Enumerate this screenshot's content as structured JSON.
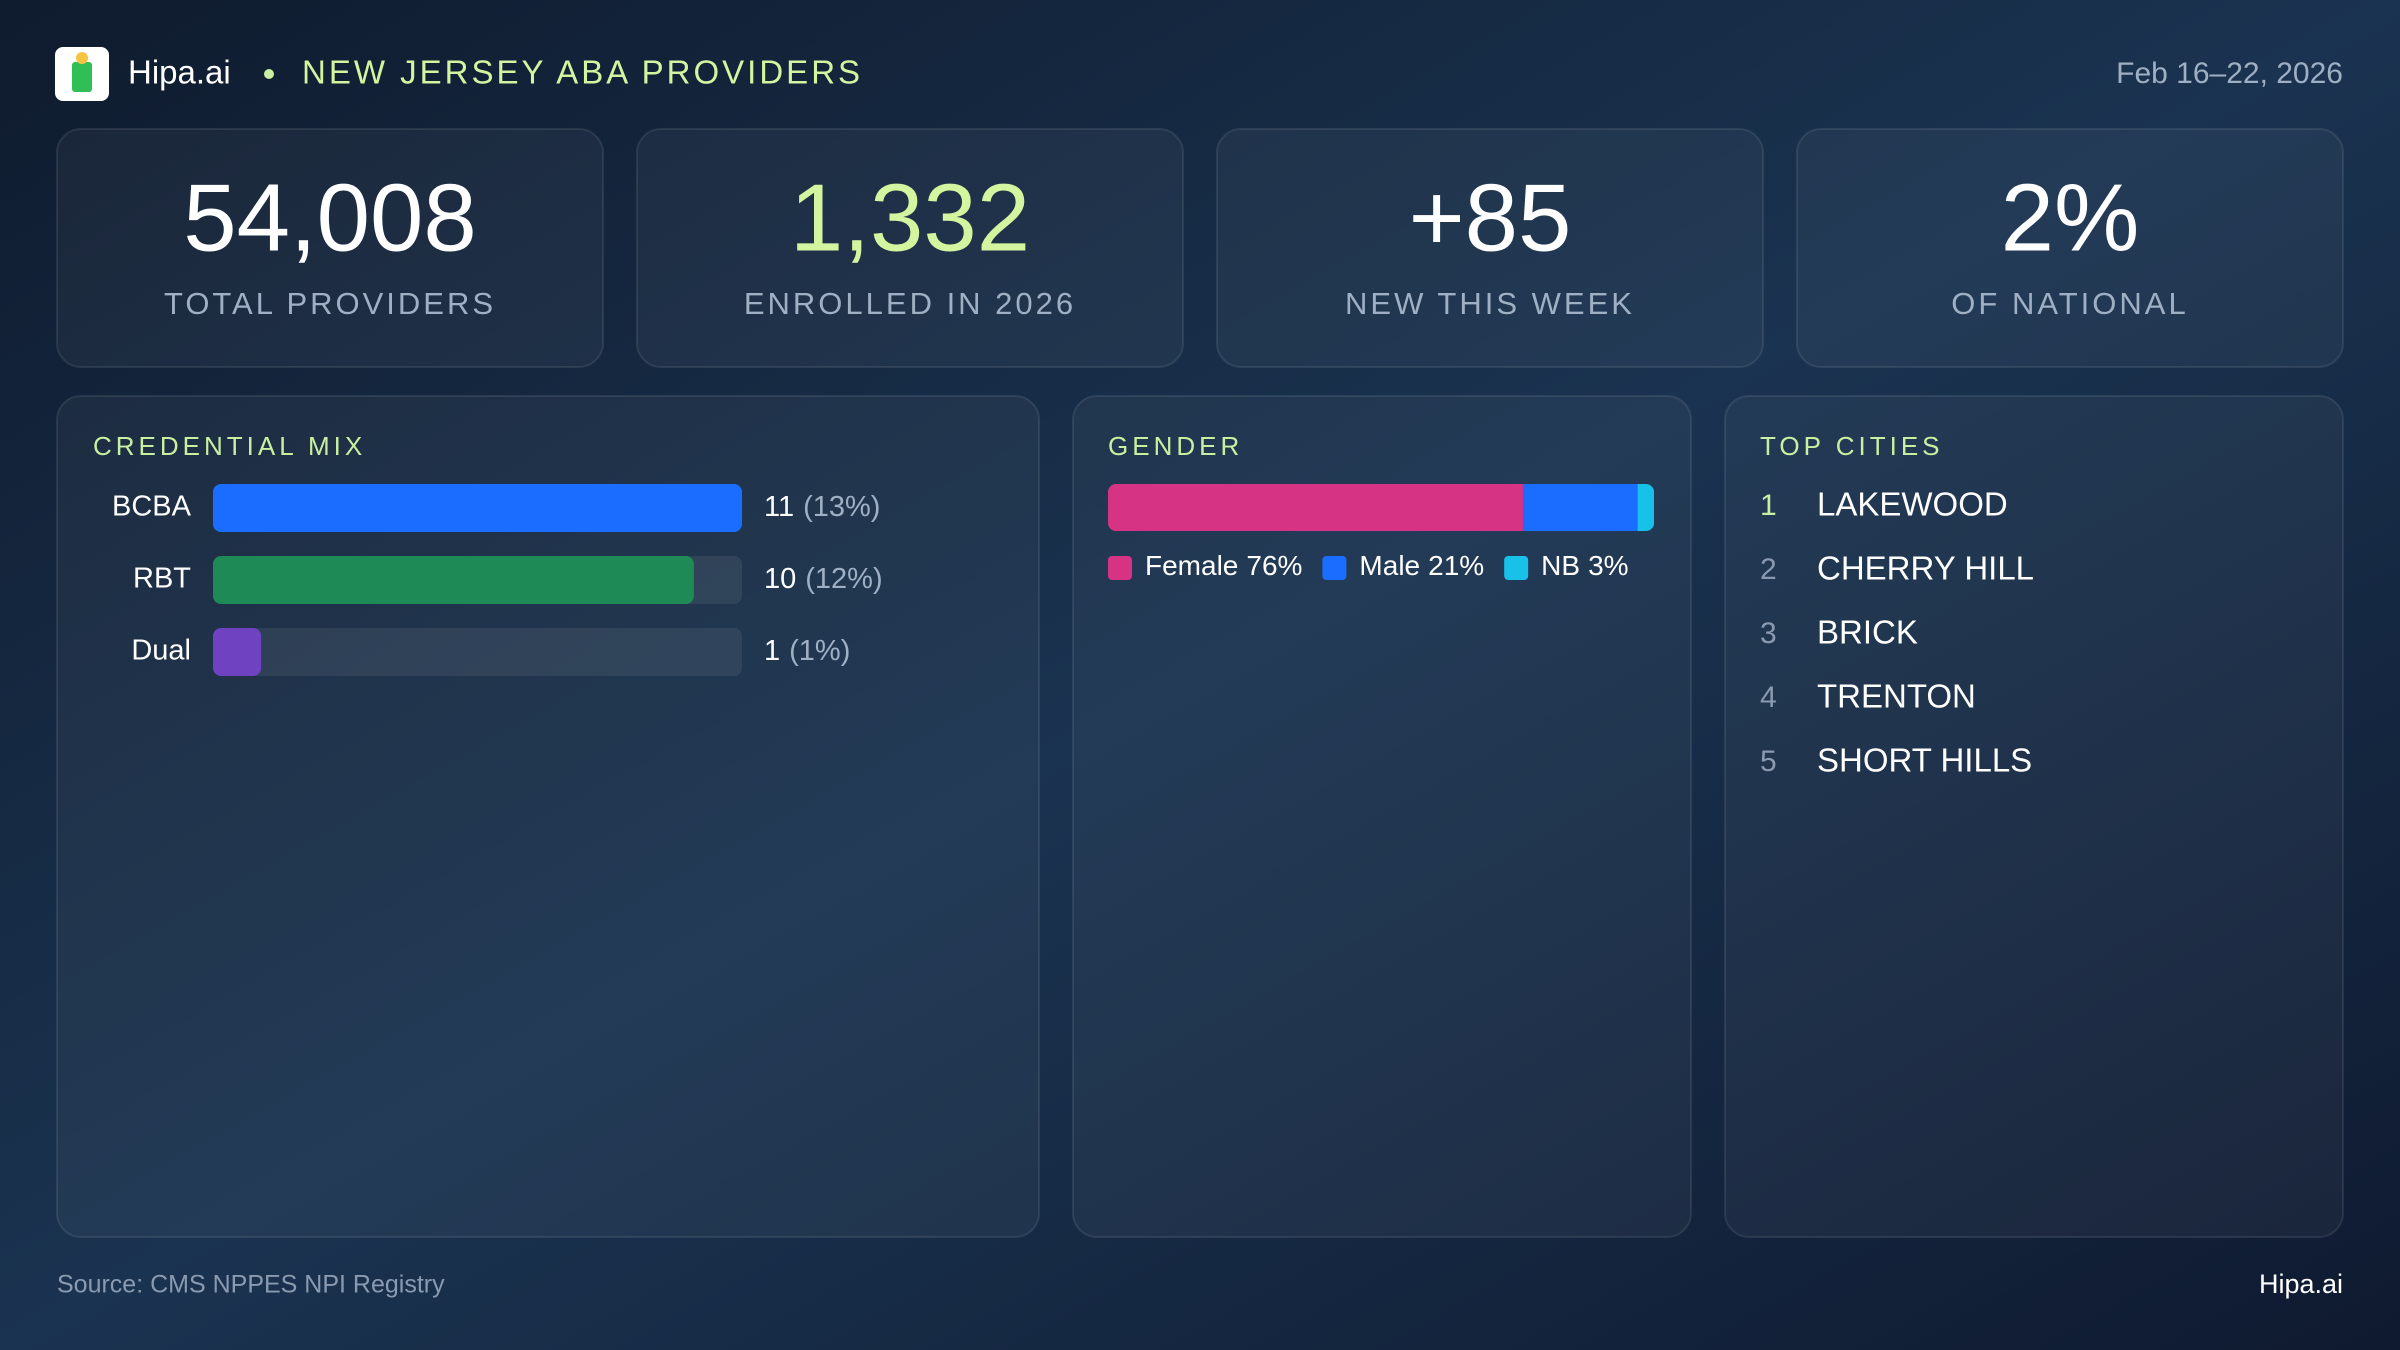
{
  "header": {
    "brand": "Hipa.ai",
    "title": "NEW JERSEY ABA PROVIDERS",
    "date": "Feb 16–22, 2026"
  },
  "kpis": [
    {
      "value": "54,008",
      "label": "TOTAL PROVIDERS"
    },
    {
      "value": "1,332",
      "label": "ENROLLED IN 2026"
    },
    {
      "value": "+85",
      "label": "NEW THIS WEEK"
    },
    {
      "value": "2%",
      "label": "OF NATIONAL"
    }
  ],
  "chart_data": [
    {
      "type": "bar",
      "title": "CREDENTIAL MIX",
      "categories": [
        "BCBA",
        "RBT",
        "Dual"
      ],
      "values": [
        11,
        10,
        1
      ],
      "share_labels": [
        "(13%)",
        "(12%)",
        "(1%)"
      ],
      "colors": [
        "#1a6dff",
        "#1e8a55",
        "#6f42c1"
      ],
      "xlim": [
        0,
        11
      ]
    },
    {
      "type": "stacked_bar",
      "title": "GENDER",
      "xlim": [
        0,
        100
      ],
      "series": [
        {
          "name": "Female",
          "color": "#d63384",
          "values": [
            76
          ],
          "value_labels": [
            "76%"
          ]
        },
        {
          "name": "Male",
          "color": "#1a6dff",
          "values": [
            21
          ],
          "value_labels": [
            "21%"
          ]
        },
        {
          "name": "NB",
          "color": "#17c1e8",
          "values": [
            3
          ],
          "value_labels": [
            "3%"
          ]
        }
      ]
    }
  ],
  "top_cities": {
    "title": "TOP CITIES",
    "items": [
      {
        "rank": 1,
        "name": "LAKEWOOD"
      },
      {
        "rank": 2,
        "name": "CHERRY HILL"
      },
      {
        "rank": 3,
        "name": "BRICK"
      },
      {
        "rank": 4,
        "name": "TRENTON"
      },
      {
        "rank": 5,
        "name": "SHORT HILLS"
      }
    ]
  },
  "footer": {
    "source": "Source: CMS NPPES NPI Registry",
    "brand": "Hipa.ai"
  }
}
